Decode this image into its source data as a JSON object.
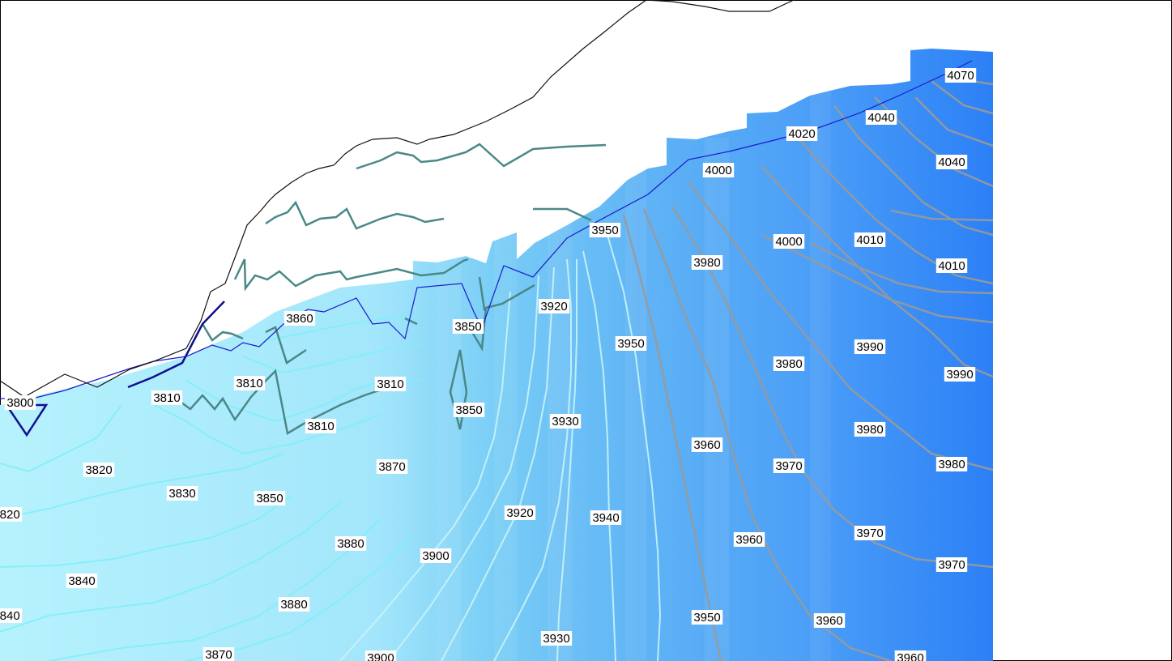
{
  "map": {
    "colors": {
      "background": "#ffffff",
      "fill_light": "#b4f0fc",
      "fill_mid": "#7fd3f7",
      "fill_deep": "#2d81f7",
      "contour_low": "#7ff0f8",
      "contour_mid": "#c8f4f8",
      "contour_high": "#9a9a9a",
      "ridge_line": "#4a8888",
      "boundary_line": "#1a1acc",
      "outline": "#111111",
      "marker": "#101090"
    },
    "contour_labels": [
      "4070",
      "4040",
      "4040",
      "4020",
      "4000",
      "4010",
      "4010",
      "4000",
      "3980",
      "3950",
      "3920",
      "3950",
      "3980",
      "3990",
      "3990",
      "3980",
      "3980",
      "3960",
      "3970",
      "3970",
      "3960",
      "3970",
      "3960",
      "3950",
      "3960",
      "3930",
      "3940",
      "3920",
      "3930",
      "3900",
      "3900",
      "3880",
      "3880",
      "3870",
      "3870",
      "3850",
      "3850",
      "3850",
      "3860",
      "3810",
      "3810",
      "3810",
      "3810",
      "3820",
      "3830",
      "3840",
      "3840",
      "3820",
      "3800",
      "3960"
    ]
  }
}
